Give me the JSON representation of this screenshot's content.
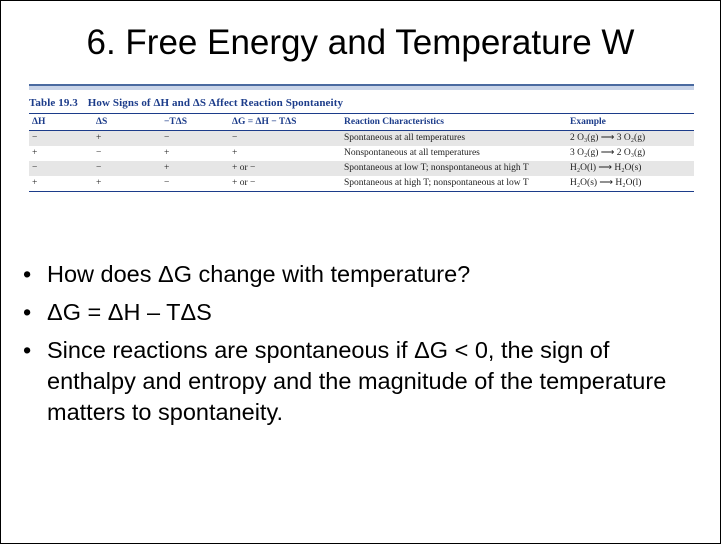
{
  "slide": {
    "title": "6. Free Energy and Temperature W"
  },
  "table": {
    "number": "Table 19.3",
    "caption": "How Signs of ΔH and ΔS Affect Reaction Spontaneity",
    "headers": [
      "ΔH",
      "ΔS",
      "−TΔS",
      "ΔG = ΔH − TΔS",
      "Reaction Characteristics",
      "Example"
    ],
    "rows": [
      [
        "−",
        "+",
        "−",
        "−",
        "Spontaneous at all temperatures",
        "2 O₃(g) ⟶ 3 O₂(g)"
      ],
      [
        "+",
        "−",
        "+",
        "+",
        "Nonspontaneous at all temperatures",
        "3 O₂(g) ⟶ 2 O₃(g)"
      ],
      [
        "−",
        "−",
        "+",
        "+ or −",
        "Spontaneous at low T; nonspontaneous at high T",
        "H₂O(l) ⟶ H₂O(s)"
      ],
      [
        "+",
        "+",
        "−",
        "+ or −",
        "Spontaneous at high T; nonspontaneous at low T",
        "H₂O(s) ⟶ H₂O(l)"
      ]
    ]
  },
  "bullets": [
    "How does ΔG change with temperature?",
    "ΔG = ΔH – TΔS",
    "Since reactions are spontaneous if ΔG < 0, the sign of enthalpy and entropy and the magnitude of the temperature matters to spontaneity."
  ]
}
